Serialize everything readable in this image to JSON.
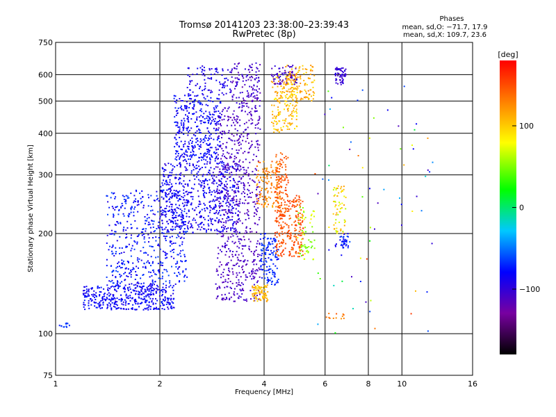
{
  "chart_data": {
    "type": "scatter",
    "title": "Tromsø 20141203 23:38:00–23:39:43",
    "subtitle": "RwPretec (8p)",
    "xlabel": "Frequency [MHz]",
    "ylabel": "Stationary phase Virtual Height [km]",
    "xscale": "log",
    "yscale": "log",
    "xlim": [
      1,
      16
    ],
    "ylim": [
      75,
      750
    ],
    "xticks": [
      1,
      2,
      4,
      6,
      8,
      10,
      16
    ],
    "xtick_labels": [
      "1",
      "2",
      "4",
      "6",
      "8",
      "10",
      "16"
    ],
    "xgrid": [
      2,
      4,
      6,
      8,
      10
    ],
    "yticks": [
      75,
      100,
      200,
      300,
      400,
      500,
      600,
      750
    ],
    "ytick_labels": [
      "75",
      "100",
      "200",
      "300",
      "400",
      "500",
      "600",
      "750"
    ],
    "ygrid": [
      100,
      200,
      300,
      400,
      500,
      600
    ],
    "grid": true,
    "stats_title": "Phases",
    "stats_lines": [
      "mean, sd,O: −71.7, 17.9",
      "mean, sd,X: 109.7, 23.6"
    ],
    "colorbar": {
      "label": "[deg]",
      "range": [
        -180,
        180
      ],
      "ticks": [
        100,
        0,
        -100
      ],
      "tick_labels": [
        "100",
        "0",
        "−100"
      ],
      "colormap": "rainbow"
    },
    "clusters": [
      {
        "x": [
          1.2,
          2.2
        ],
        "y": [
          118,
          140
        ],
        "phase": [
          -95,
          -70
        ],
        "count": 420
      },
      {
        "x": [
          1.4,
          2.4
        ],
        "y": [
          140,
          270
        ],
        "phase": [
          -95,
          -60
        ],
        "count": 520
      },
      {
        "x": [
          2.0,
          3.4
        ],
        "y": [
          200,
          330
        ],
        "phase": [
          -100,
          -75
        ],
        "count": 620
      },
      {
        "x": [
          2.2,
          3.0
        ],
        "y": [
          330,
          520
        ],
        "phase": [
          -95,
          -70
        ],
        "count": 380
      },
      {
        "x": [
          2.4,
          3.2
        ],
        "y": [
          520,
          640
        ],
        "phase": [
          -100,
          -80
        ],
        "count": 90
      },
      {
        "x": [
          2.9,
          3.9
        ],
        "y": [
          125,
          480
        ],
        "phase": [
          -120,
          -100
        ],
        "count": 650
      },
      {
        "x": [
          3.2,
          3.9
        ],
        "y": [
          480,
          650
        ],
        "phase": [
          -120,
          -95
        ],
        "count": 130
      },
      {
        "x": [
          3.9,
          4.4
        ],
        "y": [
          140,
          200
        ],
        "phase": [
          -80,
          -60
        ],
        "count": 130
      },
      {
        "x": [
          3.7,
          4.1
        ],
        "y": [
          125,
          140
        ],
        "phase": [
          90,
          120
        ],
        "count": 80
      },
      {
        "x": [
          3.8,
          4.5
        ],
        "y": [
          240,
          330
        ],
        "phase": [
          110,
          150
        ],
        "count": 140
      },
      {
        "x": [
          4.3,
          5.2
        ],
        "y": [
          170,
          260
        ],
        "phase": [
          135,
          160
        ],
        "count": 260
      },
      {
        "x": [
          4.3,
          4.7
        ],
        "y": [
          260,
          350
        ],
        "phase": [
          135,
          160
        ],
        "count": 70
      },
      {
        "x": [
          4.2,
          5.0
        ],
        "y": [
          400,
          600
        ],
        "phase": [
          85,
          125
        ],
        "count": 180
      },
      {
        "x": [
          4.6,
          5.6
        ],
        "y": [
          500,
          640
        ],
        "phase": [
          90,
          130
        ],
        "count": 120
      },
      {
        "x": [
          4.2,
          5.0
        ],
        "y": [
          560,
          640
        ],
        "phase": [
          -120,
          -95
        ],
        "count": 60
      },
      {
        "x": [
          5.0,
          5.6
        ],
        "y": [
          165,
          240
        ],
        "phase": [
          40,
          90
        ],
        "count": 60
      },
      {
        "x": [
          6.4,
          6.9
        ],
        "y": [
          560,
          630
        ],
        "phase": [
          -110,
          -90
        ],
        "count": 60
      },
      {
        "x": [
          6.3,
          6.9
        ],
        "y": [
          200,
          280
        ],
        "phase": [
          60,
          120
        ],
        "count": 60
      },
      {
        "x": [
          6.4,
          7.0
        ],
        "y": [
          180,
          200
        ],
        "phase": [
          -90,
          -60
        ],
        "count": 40
      },
      {
        "x": [
          6.0,
          6.8
        ],
        "y": [
          110,
          115
        ],
        "phase": [
          120,
          150
        ],
        "count": 12
      },
      {
        "x": [
          5.5,
          12.5
        ],
        "y": [
          100,
          600
        ],
        "phase": [
          -120,
          160
        ],
        "count": 70
      },
      {
        "x": [
          1.0,
          1.1
        ],
        "y": [
          104,
          108
        ],
        "phase": [
          -75,
          -60
        ],
        "count": 12
      }
    ]
  }
}
